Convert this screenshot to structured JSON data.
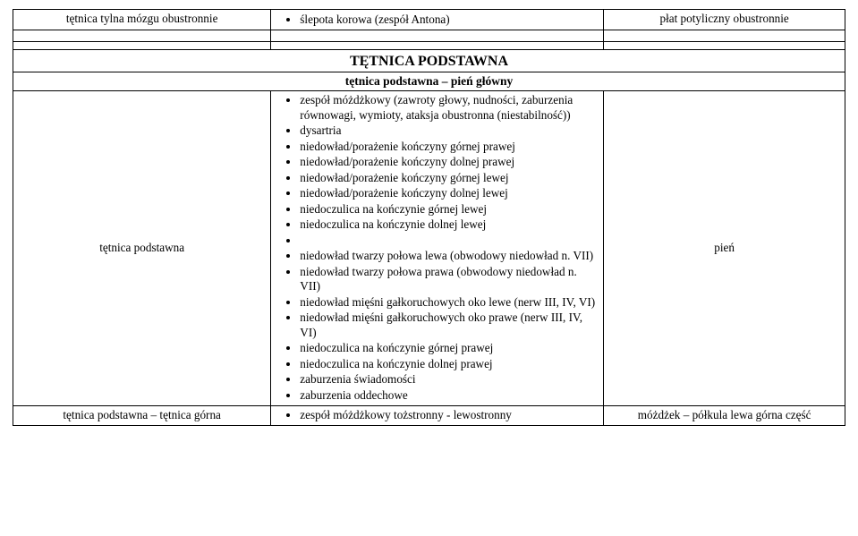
{
  "top_row": {
    "left": "tętnica tylna mózgu obustronnie",
    "mid_bullet": "ślepota korowa (zespół Antona)",
    "right": "płat potyliczny obustronnie"
  },
  "section": {
    "title": "TĘTNICA PODSTAWNA",
    "subtitle": "tętnica podstawna – pień główny"
  },
  "main_row": {
    "left": "tętnica podstawna",
    "right": "pień",
    "bullets": [
      "zespół móżdżkowy (zawroty głowy, nudności, zaburzenia równowagi, wymioty, ataksja obustronna (niestabilność))",
      "dysartria",
      "niedowład/porażenie kończyny górnej prawej",
      "niedowład/porażenie kończyny dolnej prawej",
      "niedowład/porażenie kończyny górnej lewej",
      "niedowład/porażenie kończyny dolnej lewej",
      "niedoczulica na kończynie górnej lewej",
      "niedoczulica na kończynie dolnej lewej",
      "",
      "niedowład twarzy połowa lewa (obwodowy niedowład n. VII)",
      "niedowład twarzy połowa prawa (obwodowy niedowład n. VII)",
      "niedowład mięśni gałkoruchowych oko lewe (nerw III, IV, VI)",
      "niedowład mięśni gałkoruchowych oko prawe (nerw III, IV, VI)",
      "niedoczulica na kończynie górnej prawej",
      "niedoczulica na kończynie dolnej prawej",
      "zaburzenia świadomości",
      "zaburzenia oddechowe"
    ]
  },
  "bottom_row": {
    "left": "tętnica podstawna – tętnica górna",
    "mid_bullet": "zespół móżdżkowy tożstronny - lewostronny",
    "right": "móżdżek – półkula lewa górna część"
  }
}
